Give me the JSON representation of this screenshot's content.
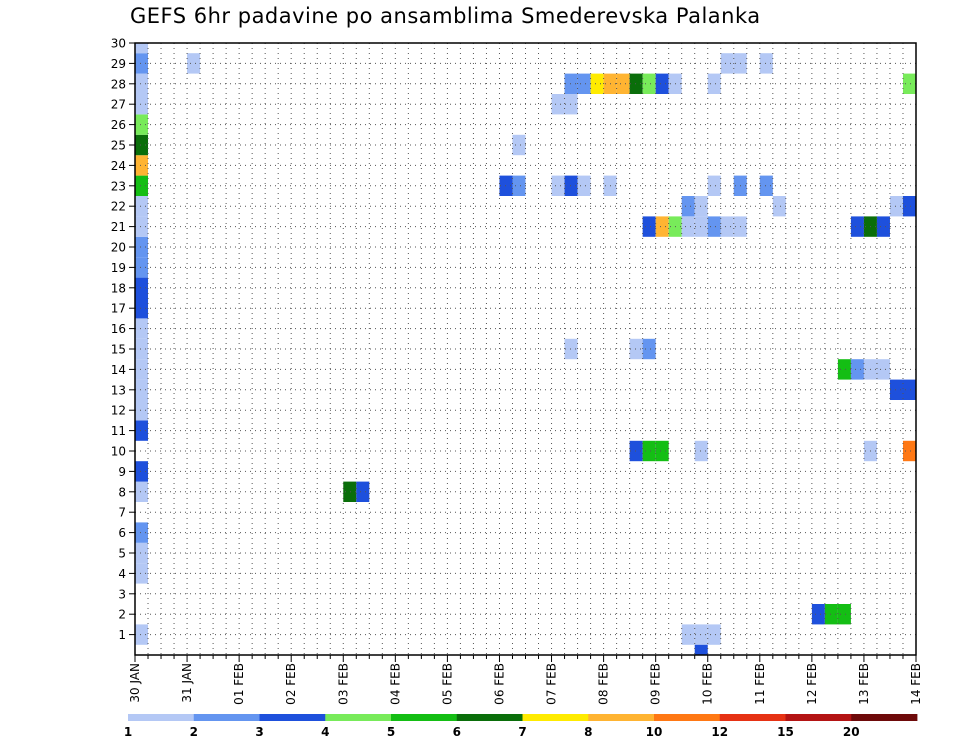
{
  "chart_data": {
    "type": "heatmap",
    "title": "GEFS 6hr padavine po ansamblima Smederevska Palanka",
    "x_axis": {
      "tick_labels": [
        "30 JAN",
        "31 JAN",
        "01 FEB",
        "02 FEB",
        "03 FEB",
        "04 FEB",
        "05 FEB",
        "06 FEB",
        "07 FEB",
        "08 FEB",
        "09 FEB",
        "10 FEB",
        "11 FEB",
        "12 FEB",
        "13 FEB",
        "14 FEB"
      ],
      "steps_per_day": 4,
      "range": [
        0,
        60
      ]
    },
    "y_axis": {
      "tick_labels": [
        "1",
        "2",
        "3",
        "4",
        "5",
        "6",
        "7",
        "8",
        "9",
        "10",
        "11",
        "12",
        "13",
        "14",
        "15",
        "16",
        "17",
        "18",
        "19",
        "20",
        "21",
        "22",
        "23",
        "24",
        "25",
        "26",
        "27",
        "28",
        "29",
        "30"
      ],
      "range": [
        0,
        30
      ]
    },
    "grid": true,
    "colorbar": {
      "colors": [
        "#b4c8f5",
        "#6495f0",
        "#1e50dc",
        "#78eb5a",
        "#14be14",
        "#0a6e0a",
        "#ffeb00",
        "#ffb432",
        "#ff7814",
        "#e63214",
        "#b41414",
        "#6e0a0a"
      ],
      "labels": [
        "1",
        "2",
        "3",
        "4",
        "5",
        "6",
        "7",
        "8",
        "10",
        "12",
        "15",
        "20"
      ],
      "placement": "bottom"
    },
    "cells": [
      {
        "m": 1,
        "t": 0,
        "c": 1
      },
      {
        "m": 4,
        "t": 0,
        "c": 1
      },
      {
        "m": 5,
        "t": 0,
        "c": 1
      },
      {
        "m": 6,
        "t": 0,
        "c": 2
      },
      {
        "m": 8,
        "t": 0,
        "c": 1
      },
      {
        "m": 9,
        "t": 0,
        "c": 3
      },
      {
        "m": 11,
        "t": 0,
        "c": 3
      },
      {
        "m": 12,
        "t": 0,
        "c": 1
      },
      {
        "m": 13,
        "t": 0,
        "c": 1
      },
      {
        "m": 14,
        "t": 0,
        "c": 1
      },
      {
        "m": 15,
        "t": 0,
        "c": 1
      },
      {
        "m": 16,
        "t": 0,
        "c": 1
      },
      {
        "m": 17,
        "t": 0,
        "c": 3
      },
      {
        "m": 18,
        "t": 0,
        "c": 3
      },
      {
        "m": 19,
        "t": 0,
        "c": 2
      },
      {
        "m": 20,
        "t": 0,
        "c": 2
      },
      {
        "m": 21,
        "t": 0,
        "c": 1
      },
      {
        "m": 22,
        "t": 0,
        "c": 1
      },
      {
        "m": 23,
        "t": 0,
        "c": 5
      },
      {
        "m": 24,
        "t": 0,
        "c": 8
      },
      {
        "m": 25,
        "t": 0,
        "c": 6
      },
      {
        "m": 26,
        "t": 0,
        "c": 4
      },
      {
        "m": 27,
        "t": 0,
        "c": 1
      },
      {
        "m": 28,
        "t": 0,
        "c": 1
      },
      {
        "m": 29,
        "t": 0,
        "c": 2
      },
      {
        "m": 30,
        "t": 0,
        "c": 1
      },
      {
        "m": 29,
        "t": 4,
        "c": 1
      },
      {
        "m": 8,
        "t": 16,
        "c": 6
      },
      {
        "m": 8,
        "t": 17,
        "c": 3
      },
      {
        "m": 25,
        "t": 29,
        "c": 1
      },
      {
        "m": 23,
        "t": 28,
        "c": 3
      },
      {
        "m": 23,
        "t": 29,
        "c": 2
      },
      {
        "m": 27,
        "t": 32,
        "c": 1
      },
      {
        "m": 27,
        "t": 33,
        "c": 1
      },
      {
        "m": 28,
        "t": 33,
        "c": 2
      },
      {
        "m": 28,
        "t": 34,
        "c": 2
      },
      {
        "m": 28,
        "t": 35,
        "c": 7
      },
      {
        "m": 28,
        "t": 36,
        "c": 8
      },
      {
        "m": 28,
        "t": 37,
        "c": 8
      },
      {
        "m": 28,
        "t": 38,
        "c": 6
      },
      {
        "m": 28,
        "t": 39,
        "c": 4
      },
      {
        "m": 28,
        "t": 40,
        "c": 3
      },
      {
        "m": 28,
        "t": 41,
        "c": 1
      },
      {
        "m": 28,
        "t": 44,
        "c": 1
      },
      {
        "m": 28,
        "t": 59,
        "c": 4
      },
      {
        "m": 29,
        "t": 45,
        "c": 1
      },
      {
        "m": 29,
        "t": 46,
        "c": 1
      },
      {
        "m": 29,
        "t": 48,
        "c": 1
      },
      {
        "m": 23,
        "t": 32,
        "c": 1
      },
      {
        "m": 23,
        "t": 33,
        "c": 3
      },
      {
        "m": 23,
        "t": 34,
        "c": 1
      },
      {
        "m": 23,
        "t": 36,
        "c": 1
      },
      {
        "m": 23,
        "t": 44,
        "c": 1
      },
      {
        "m": 23,
        "t": 46,
        "c": 2
      },
      {
        "m": 23,
        "t": 48,
        "c": 2
      },
      {
        "m": 22,
        "t": 42,
        "c": 2
      },
      {
        "m": 22,
        "t": 43,
        "c": 1
      },
      {
        "m": 22,
        "t": 49,
        "c": 1
      },
      {
        "m": 22,
        "t": 58,
        "c": 1
      },
      {
        "m": 22,
        "t": 59,
        "c": 3
      },
      {
        "m": 21,
        "t": 39,
        "c": 3
      },
      {
        "m": 21,
        "t": 40,
        "c": 8
      },
      {
        "m": 21,
        "t": 41,
        "c": 4
      },
      {
        "m": 21,
        "t": 42,
        "c": 1
      },
      {
        "m": 21,
        "t": 43,
        "c": 1
      },
      {
        "m": 21,
        "t": 44,
        "c": 2
      },
      {
        "m": 21,
        "t": 45,
        "c": 1
      },
      {
        "m": 21,
        "t": 46,
        "c": 1
      },
      {
        "m": 21,
        "t": 55,
        "c": 3
      },
      {
        "m": 21,
        "t": 56,
        "c": 6
      },
      {
        "m": 21,
        "t": 57,
        "c": 3
      },
      {
        "m": 15,
        "t": 33,
        "c": 1
      },
      {
        "m": 15,
        "t": 38,
        "c": 1
      },
      {
        "m": 15,
        "t": 39,
        "c": 2
      },
      {
        "m": 14,
        "t": 54,
        "c": 5
      },
      {
        "m": 14,
        "t": 55,
        "c": 2
      },
      {
        "m": 14,
        "t": 56,
        "c": 1
      },
      {
        "m": 14,
        "t": 57,
        "c": 1
      },
      {
        "m": 13,
        "t": 58,
        "c": 3
      },
      {
        "m": 13,
        "t": 59,
        "c": 3
      },
      {
        "m": 10,
        "t": 38,
        "c": 3
      },
      {
        "m": 10,
        "t": 39,
        "c": 5
      },
      {
        "m": 10,
        "t": 40,
        "c": 5
      },
      {
        "m": 10,
        "t": 43,
        "c": 1
      },
      {
        "m": 10,
        "t": 56,
        "c": 1
      },
      {
        "m": 10,
        "t": 59,
        "c": 9
      },
      {
        "m": 2,
        "t": 52,
        "c": 3
      },
      {
        "m": 2,
        "t": 53,
        "c": 5
      },
      {
        "m": 2,
        "t": 54,
        "c": 5
      },
      {
        "m": 1,
        "t": 42,
        "c": 1
      },
      {
        "m": 1,
        "t": 43,
        "c": 1
      },
      {
        "m": 1,
        "t": 44,
        "c": 1
      },
      {
        "m": 0,
        "t": 43,
        "c": 3
      }
    ]
  }
}
